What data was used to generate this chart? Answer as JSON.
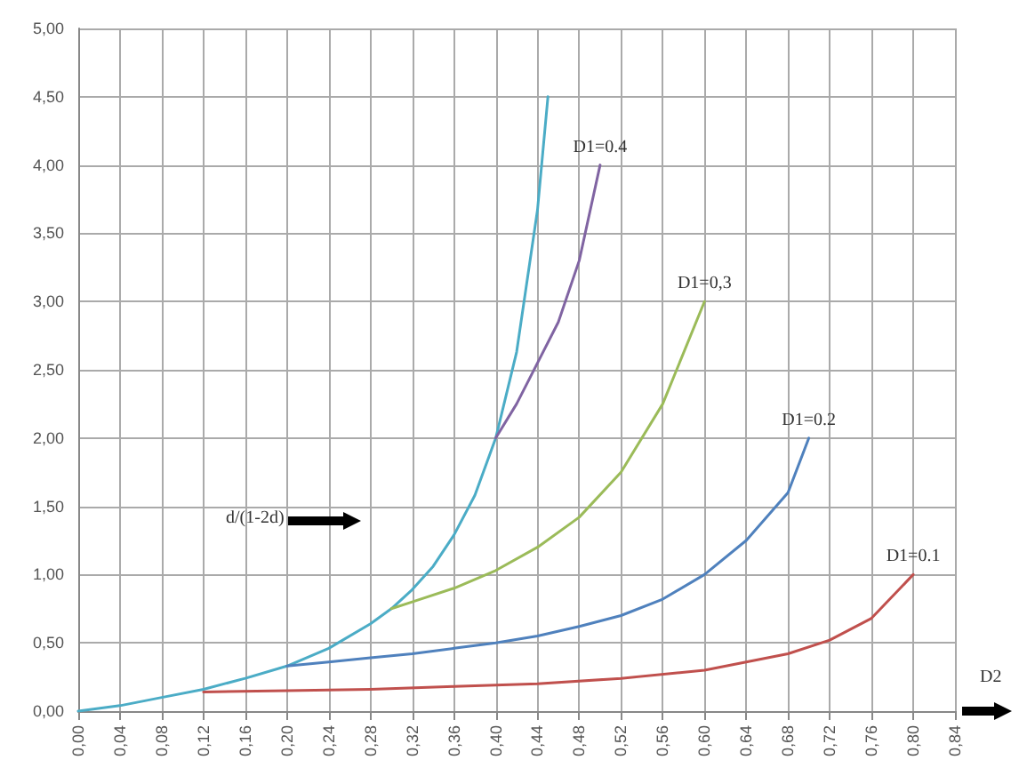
{
  "chart_data": {
    "type": "line",
    "xlabel": "D2",
    "xlim": [
      0,
      0.84
    ],
    "xticks": [
      {
        "value": 0,
        "label": "0,00"
      },
      {
        "value": 0.04,
        "label": "0,04"
      },
      {
        "value": 0.08,
        "label": "0,08"
      },
      {
        "value": 0.12,
        "label": "0,12"
      },
      {
        "value": 0.16,
        "label": "0,16"
      },
      {
        "value": 0.2,
        "label": "0,20"
      },
      {
        "value": 0.24,
        "label": "0,24"
      },
      {
        "value": 0.28,
        "label": "0,28"
      },
      {
        "value": 0.32,
        "label": "0,32"
      },
      {
        "value": 0.36,
        "label": "0,36"
      },
      {
        "value": 0.4,
        "label": "0,40"
      },
      {
        "value": 0.44,
        "label": "0,44"
      },
      {
        "value": 0.48,
        "label": "0,48"
      },
      {
        "value": 0.52,
        "label": "0,52"
      },
      {
        "value": 0.56,
        "label": "0,56"
      },
      {
        "value": 0.6,
        "label": "0,60"
      },
      {
        "value": 0.64,
        "label": "0,64"
      },
      {
        "value": 0.68,
        "label": "0,68"
      },
      {
        "value": 0.72,
        "label": "0,72"
      },
      {
        "value": 0.76,
        "label": "0,76"
      },
      {
        "value": 0.8,
        "label": "0,80"
      },
      {
        "value": 0.84,
        "label": "0,84"
      }
    ],
    "ylim": [
      0,
      5
    ],
    "yticks": [
      {
        "value": 0,
        "label": "0,00"
      },
      {
        "value": 0.5,
        "label": "0,50"
      },
      {
        "value": 1,
        "label": "1,00"
      },
      {
        "value": 1.5,
        "label": "1,50"
      },
      {
        "value": 2,
        "label": "2,00"
      },
      {
        "value": 2.5,
        "label": "2,50"
      },
      {
        "value": 3,
        "label": "3,00"
      },
      {
        "value": 3.5,
        "label": "3,50"
      },
      {
        "value": 4,
        "label": "4,00"
      },
      {
        "value": 4.5,
        "label": "4,50"
      },
      {
        "value": 5,
        "label": "5,00"
      }
    ],
    "grid": true,
    "legend": false,
    "marker": "none",
    "line_style": "solid",
    "annotations": [
      "d/(1-2d)"
    ],
    "series": [
      {
        "color": "#4bacc6",
        "x": [
          0,
          0.04,
          0.08,
          0.12,
          0.16,
          0.2,
          0.24,
          0.28,
          0.3,
          0.32,
          0.34,
          0.36,
          0.38,
          0.4,
          0.42,
          0.44,
          0.45
        ],
        "values": [
          0,
          0.04,
          0.1,
          0.16,
          0.24,
          0.33,
          0.46,
          0.64,
          0.75,
          0.89,
          1.06,
          1.29,
          1.58,
          2.0,
          2.63,
          3.67,
          4.5
        ]
      },
      {
        "name": "D1=0.4",
        "color": "#8064a2",
        "x": [
          0.4,
          0.42,
          0.44,
          0.46,
          0.48,
          0.5
        ],
        "values": [
          2.0,
          2.25,
          2.55,
          2.85,
          3.3,
          4.0
        ]
      },
      {
        "name": "D1=0,3",
        "color": "#9bbb59",
        "x": [
          0.3,
          0.32,
          0.36,
          0.4,
          0.44,
          0.48,
          0.52,
          0.56,
          0.6
        ],
        "values": [
          0.75,
          0.8,
          0.9,
          1.03,
          1.2,
          1.42,
          1.75,
          2.25,
          3.0
        ]
      },
      {
        "name": "D1=0.2",
        "color": "#4f81bd",
        "x": [
          0.2,
          0.24,
          0.28,
          0.32,
          0.36,
          0.4,
          0.44,
          0.48,
          0.52,
          0.56,
          0.6,
          0.64,
          0.68,
          0.7
        ],
        "values": [
          0.33,
          0.36,
          0.39,
          0.42,
          0.46,
          0.5,
          0.55,
          0.62,
          0.7,
          0.82,
          1.0,
          1.25,
          1.6,
          2.0
        ]
      },
      {
        "name": "D1=0.1",
        "color": "#c0504d",
        "x": [
          0.12,
          0.2,
          0.28,
          0.36,
          0.44,
          0.52,
          0.6,
          0.68,
          0.72,
          0.76,
          0.8
        ],
        "values": [
          0.14,
          0.15,
          0.16,
          0.18,
          0.2,
          0.24,
          0.3,
          0.42,
          0.52,
          0.68,
          1.0
        ]
      }
    ]
  }
}
